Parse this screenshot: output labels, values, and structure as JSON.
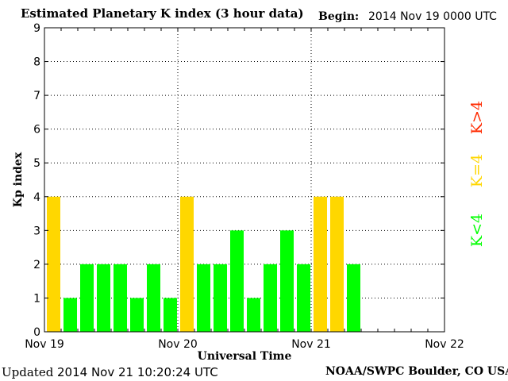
{
  "header": {
    "title": "Estimated Planetary K index (3 hour data)",
    "begin_label": "Begin:",
    "begin_value": "2014 Nov 19 0000 UTC"
  },
  "footer": {
    "updated_label": "Updated",
    "updated_value": "2014 Nov 21 10:20:24 UTC",
    "credit": "NOAA/SWPC Boulder, CO USA"
  },
  "colors": {
    "below_4": "#00ff00",
    "equal_4": "#ffd700",
    "above_4": "#ff2a00"
  },
  "chart_data": {
    "type": "bar",
    "title": "Estimated Planetary K index (3 hour data)",
    "xlabel": "Universal Time",
    "ylabel": "Kp index",
    "ylim": [
      0,
      9
    ],
    "yticks": [
      "0",
      "1",
      "2",
      "3",
      "4",
      "5",
      "6",
      "7",
      "8",
      "9"
    ],
    "x_ticks": [
      "Nov 19",
      "Nov 20",
      "Nov 21",
      "Nov 22"
    ],
    "slots_per_day": 8,
    "grid": true,
    "legend": [
      {
        "label": "K<4",
        "color": "#00ff00"
      },
      {
        "label": "K=4",
        "color": "#ffd700"
      },
      {
        "label": "K>4",
        "color": "#ff2a00"
      }
    ],
    "values": [
      4,
      1,
      2,
      2,
      2,
      1,
      2,
      1,
      4,
      2,
      2,
      3,
      1,
      2,
      3,
      2,
      4,
      4,
      2
    ]
  }
}
